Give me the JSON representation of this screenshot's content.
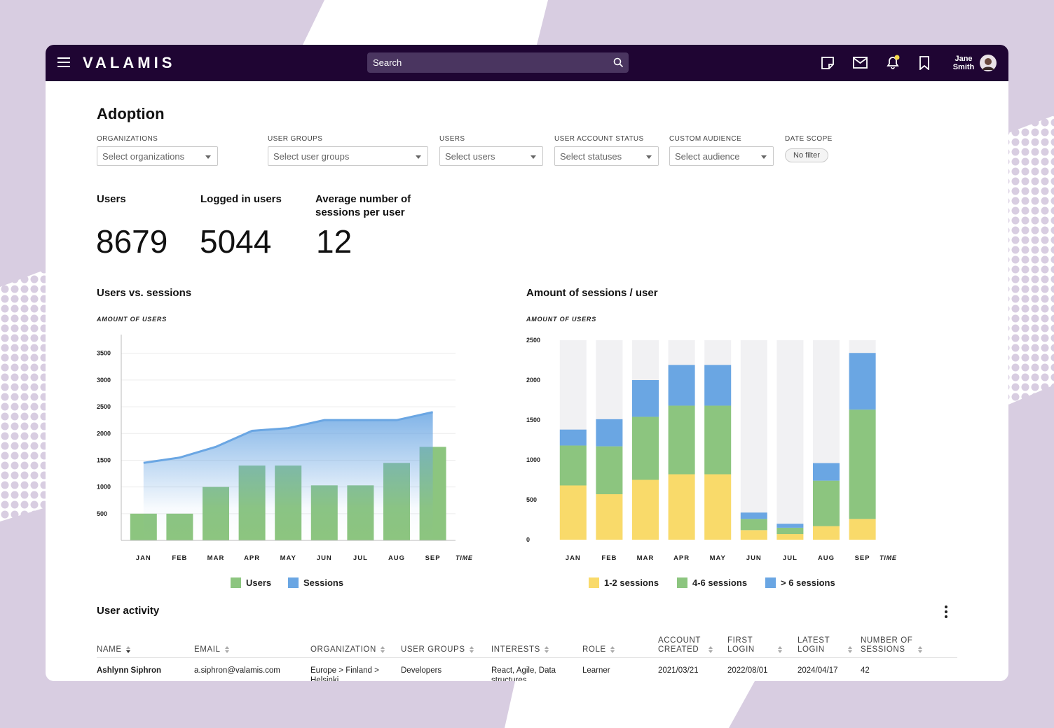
{
  "header": {
    "logo": "VALAMIS",
    "search_placeholder": "Search",
    "user_first_name": "Jane",
    "user_last_name": "Smith"
  },
  "page": {
    "title": "Adoption"
  },
  "filters": [
    {
      "label": "ORGANIZATIONS",
      "placeholder": "Select organizations"
    },
    {
      "label": "USER GROUPS",
      "placeholder": "Select user groups"
    },
    {
      "label": "USERS",
      "placeholder": "Select users"
    },
    {
      "label": "USER ACCOUNT STATUS",
      "placeholder": "Select statuses"
    },
    {
      "label": "CUSTOM AUDIENCE",
      "placeholder": "Select audience"
    },
    {
      "label": "DATE SCOPE",
      "chip": "No filter"
    }
  ],
  "kpis": [
    {
      "label": "Users",
      "value": 8679
    },
    {
      "label": "Logged in users",
      "value": 5044
    },
    {
      "label": "Average number of sessions per user",
      "value": 12
    }
  ],
  "chart_data": [
    {
      "type": "bar_area",
      "title": "Users vs. sessions",
      "y_label": "AMOUNT OF USERS",
      "x_label": "TIME",
      "categories": [
        "JAN",
        "FEB",
        "MAR",
        "APR",
        "MAY",
        "JUN",
        "JUL",
        "AUG",
        "SEP"
      ],
      "series": [
        {
          "name": "Users",
          "type": "bar",
          "color": "#8cc57f",
          "values": [
            500,
            500,
            1000,
            1400,
            1400,
            1030,
            1030,
            1450,
            1750
          ]
        },
        {
          "name": "Sessions",
          "type": "area",
          "color": "#6aa6e3",
          "values": [
            1450,
            1550,
            1750,
            2050,
            2100,
            2250,
            2250,
            2250,
            2400
          ]
        }
      ],
      "ylim": [
        0,
        3850
      ],
      "yticks": [
        500,
        1000,
        1500,
        2000,
        2500,
        3000,
        3500
      ],
      "grid": true
    },
    {
      "type": "stacked_bar",
      "title": "Amount of sessions / user",
      "y_label": "AMOUNT OF USERS",
      "x_label": "TIME",
      "categories": [
        "JAN",
        "FEB",
        "MAR",
        "APR",
        "MAY",
        "JUN",
        "JUL",
        "AUG",
        "SEP"
      ],
      "series": [
        {
          "name": "1-2 sessions",
          "color": "#f9da6a",
          "values": [
            680,
            570,
            750,
            820,
            820,
            120,
            70,
            170,
            260
          ]
        },
        {
          "name": "4-6 sessions",
          "color": "#8cc57f",
          "values": [
            500,
            600,
            790,
            860,
            860,
            140,
            80,
            570,
            1370
          ]
        },
        {
          "name": "> 6 sessions",
          "color": "#6aa6e3",
          "values": [
            200,
            340,
            460,
            510,
            510,
            80,
            50,
            220,
            710
          ]
        }
      ],
      "ylim": [
        0,
        2500
      ],
      "yticks": [
        0,
        500,
        1000,
        1500,
        2000,
        2500
      ],
      "grid": false
    }
  ],
  "table": {
    "title": "User activity",
    "columns": [
      "NAME",
      "EMAIL",
      "ORGANIZATION",
      "USER GROUPS",
      "INTERESTS",
      "ROLE",
      "ACCOUNT CREATED",
      "FIRST LOGIN",
      "LATEST LOGIN",
      "NUMBER OF SESSIONS"
    ],
    "rows": [
      [
        "Ashlynn Siphron",
        "a.siphron@valamis.com",
        "Europe > Finland > Helsinki",
        "Developers",
        "React, Agile, Data structures",
        "Learner",
        "2021/03/21",
        "2022/08/01",
        "2024/04/17",
        42
      ]
    ]
  }
}
